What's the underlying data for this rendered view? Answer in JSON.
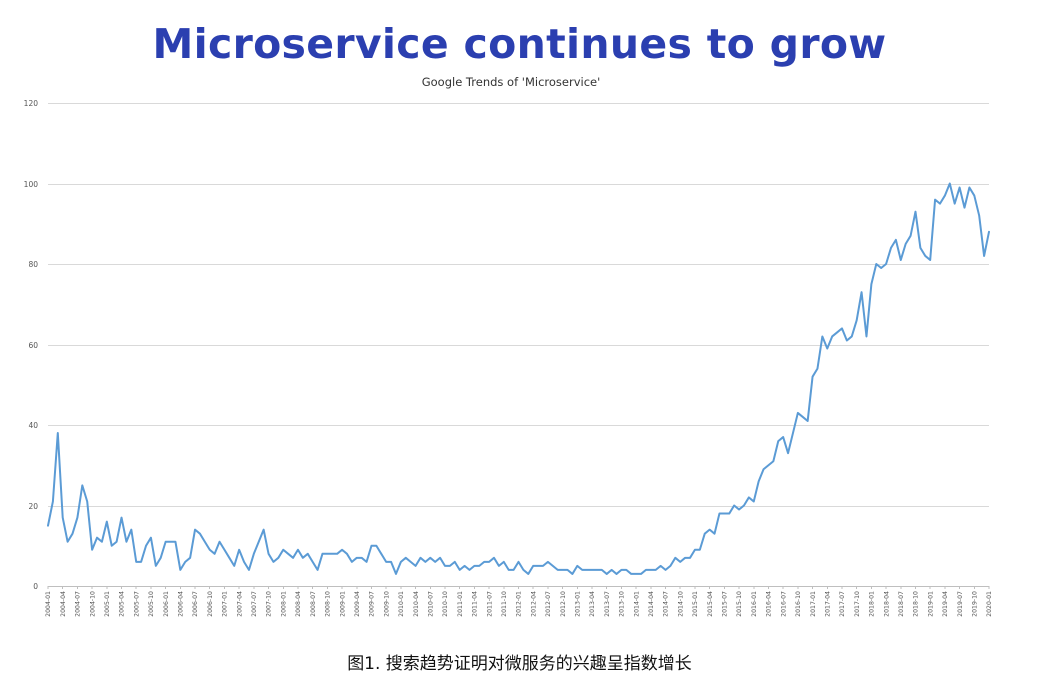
{
  "headline": "Microservice continues to grow",
  "caption": "图1. 搜索趋势证明对微服务的兴趣呈指数增长",
  "colors": {
    "headline": "#2b3fb0",
    "line": "#5b9bd5"
  },
  "chart_data": {
    "type": "line",
    "title": "Google Trends of 'Microservice'",
    "xlabel": "",
    "ylabel": "",
    "ylim": [
      0,
      120
    ],
    "yticks": [
      0,
      20,
      40,
      60,
      80,
      100,
      120
    ],
    "grid": true,
    "legend": "none",
    "xticks": [
      "2004-01",
      "2004-04",
      "2004-07",
      "2004-10",
      "2005-01",
      "2005-04",
      "2005-07",
      "2005-10",
      "2006-01",
      "2006-04",
      "2006-07",
      "2006-10",
      "2007-01",
      "2007-04",
      "2007-07",
      "2007-10",
      "2008-01",
      "2008-04",
      "2008-07",
      "2008-10",
      "2009-01",
      "2009-04",
      "2009-07",
      "2009-10",
      "2010-01",
      "2010-04",
      "2010-07",
      "2010-10",
      "2011-01",
      "2011-04",
      "2011-07",
      "2011-10",
      "2012-01",
      "2012-04",
      "2012-07",
      "2012-10",
      "2013-01",
      "2013-04",
      "2013-07",
      "2013-10",
      "2014-01",
      "2014-04",
      "2014-07",
      "2014-10",
      "2015-01",
      "2015-04",
      "2015-07",
      "2015-10",
      "2016-01",
      "2016-04",
      "2016-07",
      "2016-10",
      "2017-01",
      "2017-04",
      "2017-07",
      "2017-10",
      "2018-01",
      "2018-04",
      "2018-07",
      "2018-10",
      "2019-01",
      "2019-04",
      "2019-07",
      "2019-10",
      "2020-01"
    ],
    "x_start": "2004-01",
    "x_step": "monthly",
    "series": [
      {
        "values": [
          15,
          21,
          38,
          17,
          11,
          13,
          17,
          25,
          21,
          9,
          12,
          11,
          16,
          10,
          11,
          17,
          11,
          14,
          6,
          6,
          10,
          12,
          5,
          7,
          11,
          11,
          11,
          4,
          6,
          7,
          14,
          13,
          11,
          9,
          8,
          11,
          9,
          7,
          5,
          9,
          6,
          4,
          8,
          11,
          14,
          8,
          6,
          7,
          9,
          8,
          7,
          9,
          7,
          8,
          6,
          4,
          8,
          8,
          8,
          8,
          9,
          8,
          6,
          7,
          7,
          6,
          10,
          10,
          8,
          6,
          6,
          3,
          6,
          7,
          6,
          5,
          7,
          6,
          7,
          6,
          7,
          5,
          5,
          6,
          4,
          5,
          4,
          5,
          5,
          6,
          6,
          7,
          5,
          6,
          4,
          4,
          6,
          4,
          3,
          5,
          5,
          5,
          6,
          5,
          4,
          4,
          4,
          3,
          5,
          4,
          4,
          4,
          4,
          4,
          3,
          4,
          3,
          4,
          4,
          3,
          3,
          3,
          4,
          4,
          4,
          5,
          4,
          5,
          7,
          6,
          7,
          7,
          9,
          9,
          13,
          14,
          13,
          18,
          18,
          18,
          20,
          19,
          20,
          22,
          21,
          26,
          29,
          30,
          31,
          36,
          37,
          33,
          38,
          43,
          42,
          41,
          52,
          54,
          62,
          59,
          62,
          63,
          64,
          61,
          62,
          66,
          73,
          62,
          75,
          80,
          79,
          80,
          84,
          86,
          81,
          85,
          87,
          93,
          84,
          82,
          81,
          96,
          95,
          97,
          100,
          95,
          99,
          94,
          99,
          97,
          92,
          82,
          88
        ]
      }
    ]
  }
}
